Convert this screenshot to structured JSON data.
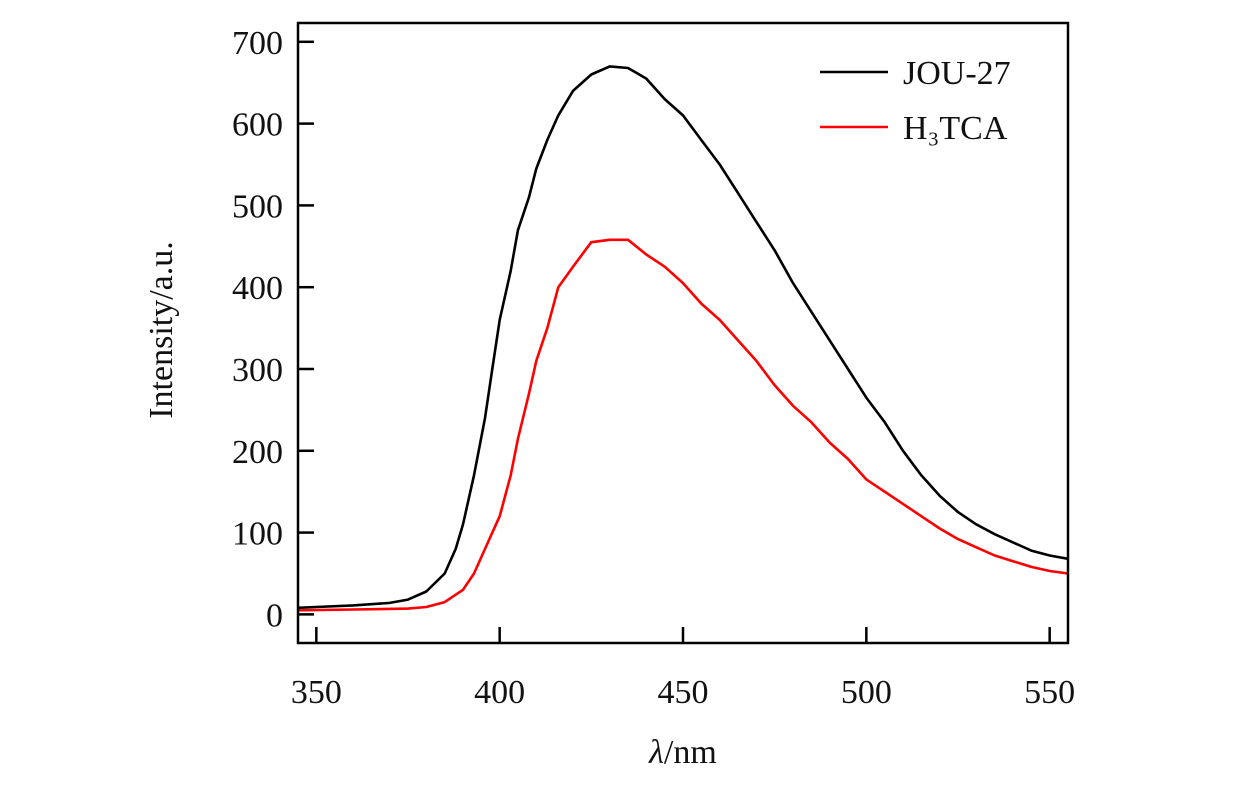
{
  "chart_data": {
    "type": "line",
    "title": "",
    "xlabel_symbol": "λ",
    "xlabel_unit": "/nm",
    "ylabel": "Intensity/a.u.",
    "xlim": [
      345,
      555
    ],
    "ylim": [
      -35,
      723
    ],
    "xticks": [
      350,
      400,
      450,
      500,
      550
    ],
    "yticks": [
      0,
      100,
      200,
      300,
      400,
      500,
      600,
      700
    ],
    "grid": false,
    "legend": "top-right",
    "series": [
      {
        "name": "JOU-27",
        "color": "#000000",
        "x": [
          345,
          350,
          360,
          370,
          375,
          380,
          385,
          388,
          390,
          393,
          396,
          398,
          400,
          403,
          405,
          408,
          410,
          413,
          416,
          420,
          425,
          430,
          435,
          440,
          445,
          450,
          455,
          460,
          465,
          470,
          475,
          480,
          485,
          490,
          495,
          500,
          505,
          510,
          515,
          520,
          525,
          530,
          535,
          540,
          545,
          550,
          555
        ],
        "y": [
          8,
          9,
          11,
          14,
          18,
          28,
          50,
          80,
          110,
          170,
          240,
          300,
          360,
          420,
          470,
          510,
          545,
          580,
          610,
          640,
          660,
          670,
          668,
          655,
          630,
          610,
          580,
          550,
          515,
          480,
          445,
          405,
          370,
          335,
          300,
          265,
          235,
          200,
          170,
          145,
          125,
          110,
          98,
          88,
          78,
          72,
          68
        ]
      },
      {
        "name": "H₃TCA",
        "color": "#ff0000",
        "x": [
          345,
          360,
          375,
          380,
          385,
          390,
          393,
          396,
          400,
          403,
          405,
          408,
          410,
          413,
          416,
          420,
          425,
          430,
          435,
          440,
          445,
          450,
          455,
          460,
          465,
          470,
          475,
          480,
          485,
          490,
          495,
          500,
          505,
          510,
          515,
          520,
          525,
          530,
          535,
          540,
          545,
          550,
          555
        ],
        "y": [
          5,
          6,
          7,
          9,
          15,
          30,
          50,
          80,
          120,
          170,
          215,
          270,
          310,
          350,
          400,
          425,
          455,
          458,
          458,
          440,
          425,
          405,
          380,
          360,
          335,
          310,
          280,
          255,
          235,
          210,
          190,
          165,
          150,
          135,
          120,
          105,
          92,
          82,
          72,
          65,
          58,
          53,
          50
        ]
      }
    ]
  }
}
